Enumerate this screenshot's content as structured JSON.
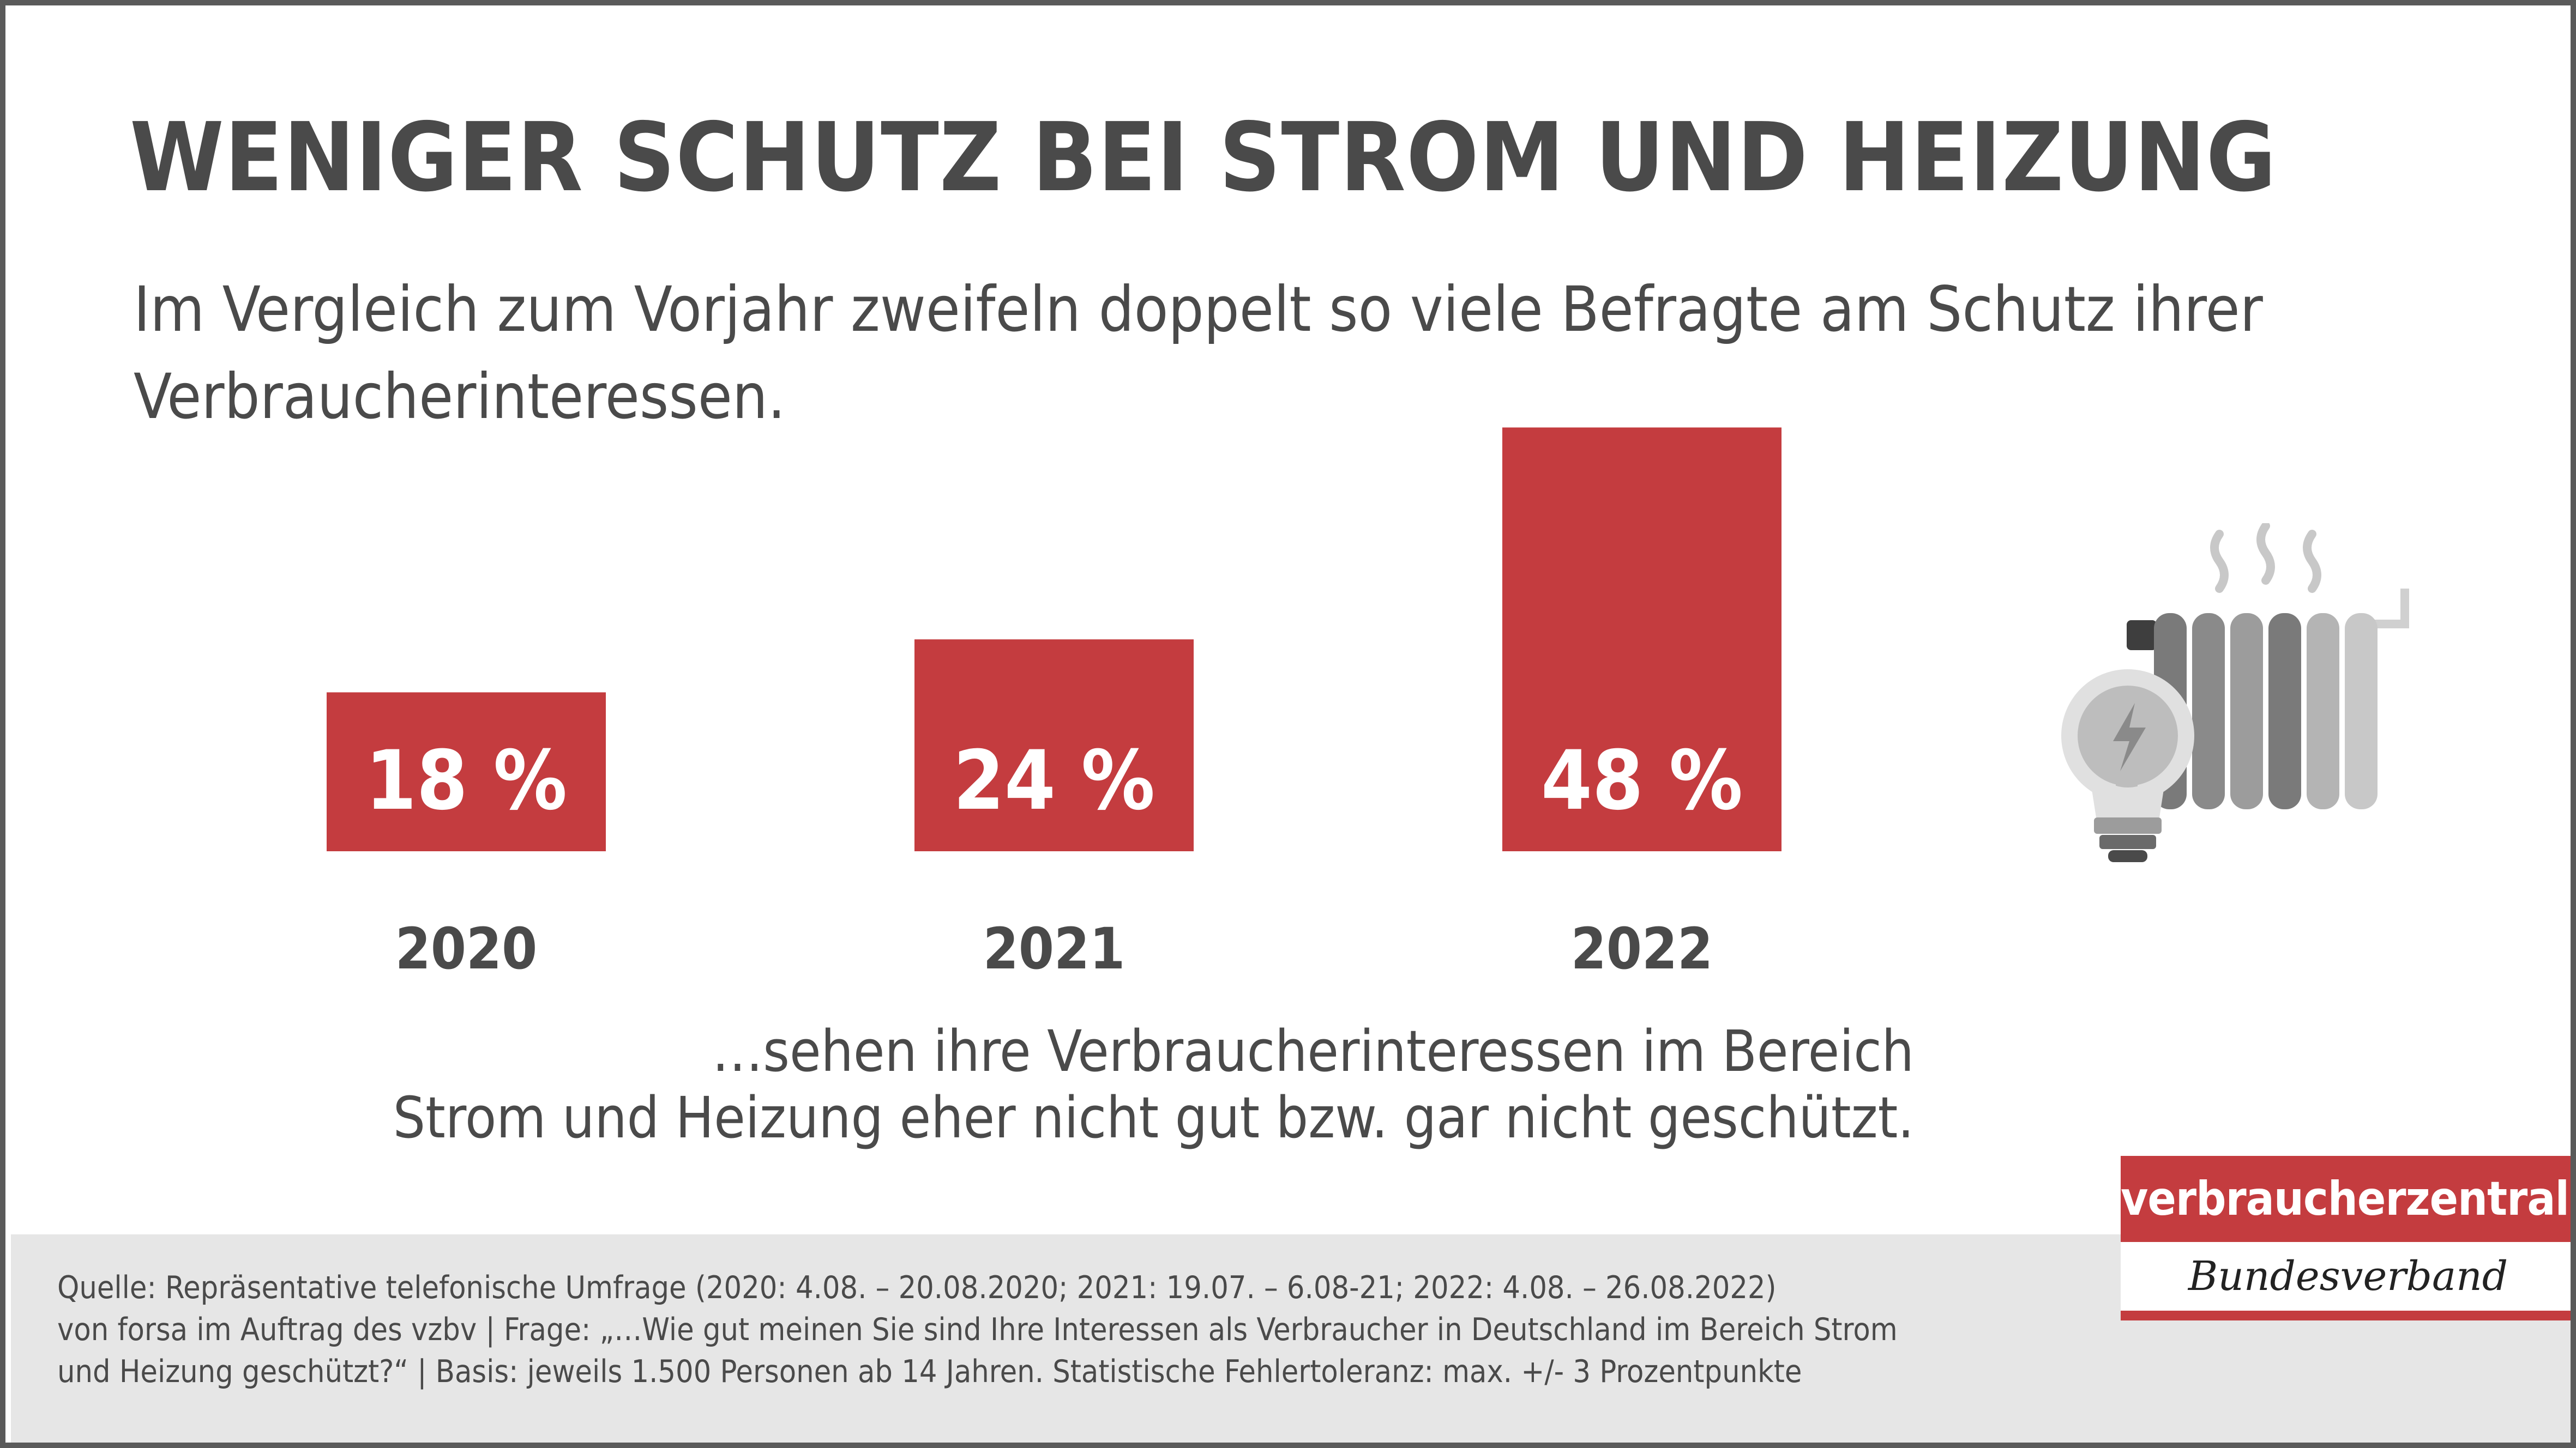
{
  "title": "WENIGER SCHUTZ BEI STROM UND HEIZUNG",
  "subtitle": "Im Vergleich zum Vorjahr zweifeln doppelt so viele Befragte am Schutz ihrer Verbraucherinteressen.",
  "chart_data": {
    "type": "bar",
    "categories": [
      "2020",
      "2021",
      "2022"
    ],
    "values": [
      18,
      24,
      48
    ],
    "value_labels": [
      "18 %",
      "24 %",
      "48 %"
    ],
    "unit": "%",
    "bar_color": "#c43c3f",
    "legend": "none",
    "grid": false
  },
  "caption": {
    "line1": "…sehen ihre Verbraucherinteressen im Bereich",
    "line2": "Strom und Heizung eher nicht gut bzw. gar nicht geschützt."
  },
  "source": {
    "line1": "Quelle: Repräsentative telefonische Umfrage (2020: 4.08. – 20.08.2020; 2021: 19.07. – 6.08-21; 2022: 4.08. – 26.08.2022)",
    "line2": "von forsa im Auftrag des vzbv | Frage: „…Wie gut meinen Sie sind Ihre Interessen als Verbraucher in Deutschland im Bereich Strom",
    "line3": "und Heizung geschützt?“ | Basis: jeweils 1.500 Personen ab 14 Jahren. Statistische Fehlertoleranz: max. +/- 3 Prozentpunkte"
  },
  "logo": {
    "top": "verbraucherzentrale",
    "bottom": "Bundesverband",
    "color": "#c43c3f"
  },
  "icons": {
    "illustration": "radiator-lightbulb-icon"
  }
}
